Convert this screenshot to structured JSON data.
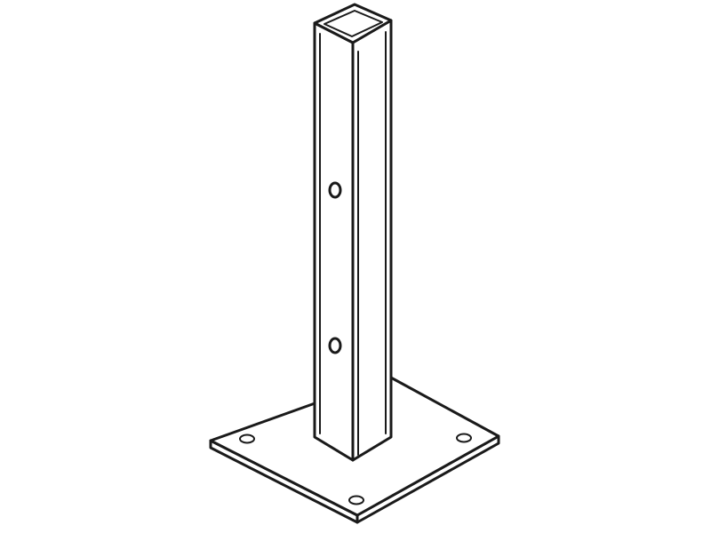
{
  "drawing": {
    "subject": "post-with-base-plate",
    "colors": {
      "background": "#ffffff",
      "line": "#1a1a1a",
      "fill": "#ffffff"
    },
    "post_hole_count": 2,
    "plate_hole_count": 3
  }
}
